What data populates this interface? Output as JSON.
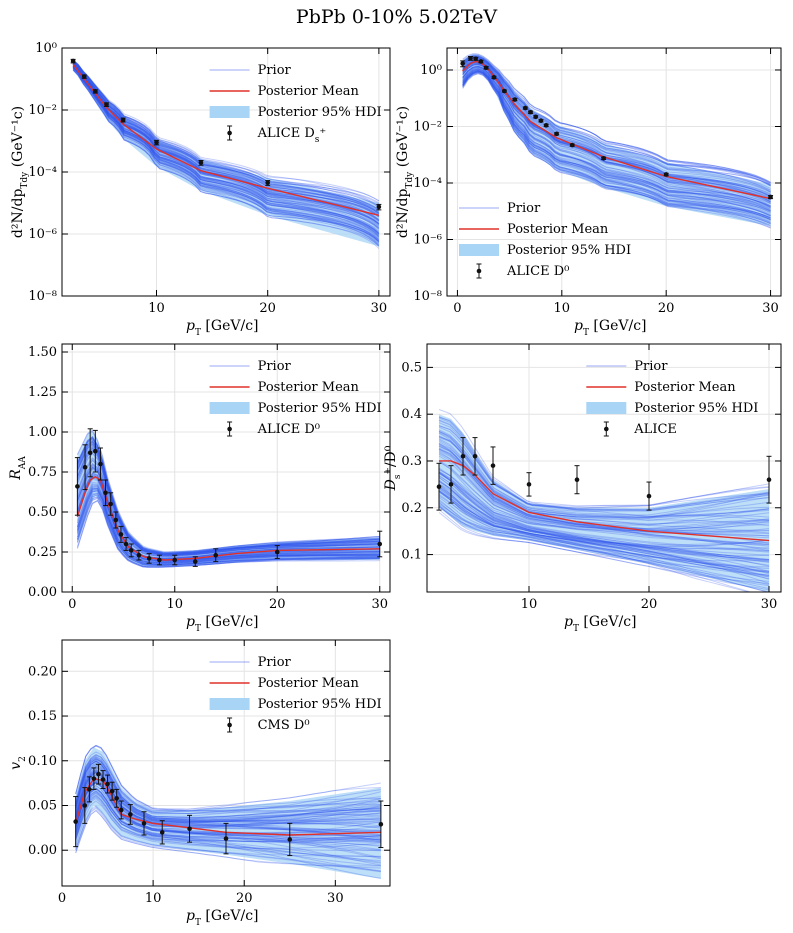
{
  "figure": {
    "title": "PbPb  0-10%  5.02TeV"
  },
  "colors": {
    "prior": "#3355ee",
    "posterior_mean": "#e0302a",
    "hdi": "#a8d4f5",
    "data": "#111111",
    "grid": "#e4e4e4"
  },
  "chart_data": [
    {
      "id": "ds-spectrum",
      "type": "line",
      "yscale": "log",
      "xlabel": "p_T [GeV/c]",
      "ylabel": "d²N/dp_Tdy (GeV⁻¹c)",
      "xlim": [
        1.5,
        31
      ],
      "ylim": [
        1e-08,
        1
      ],
      "xticks": [
        10,
        20,
        30
      ],
      "xtick_labels": [
        "10",
        "20",
        "30"
      ],
      "yticks": [
        1e-08,
        1e-06,
        0.0001,
        0.01,
        1
      ],
      "ytick_labels": [
        "10⁻⁸",
        "10⁻⁶",
        "10⁻⁴",
        "10⁻²",
        "10⁰"
      ],
      "legend": {
        "position": "top-right",
        "entries": [
          "Prior",
          "Posterior Mean",
          "Posterior 95% HDI",
          "ALICE D_s⁺"
        ]
      },
      "mean": {
        "x": [
          2.5,
          3.5,
          4.5,
          5.5,
          7,
          10,
          14,
          20,
          30
        ],
        "y": [
          0.3,
          0.1,
          0.035,
          0.012,
          0.0035,
          0.00055,
          0.00011,
          3e-05,
          4e-06
        ]
      },
      "hdi": {
        "x": [
          2.5,
          3.5,
          4.5,
          5.5,
          7,
          10,
          14,
          20,
          30
        ],
        "lo": [
          0.2,
          0.06,
          0.018,
          0.005,
          0.0012,
          0.00015,
          2.5e-05,
          4e-06,
          4e-07
        ],
        "hi": [
          0.42,
          0.16,
          0.06,
          0.022,
          0.007,
          0.0012,
          0.00026,
          6.5e-05,
          1e-05
        ]
      },
      "data": {
        "x": [
          2.5,
          3.5,
          4.5,
          5.5,
          7,
          10,
          14,
          20,
          30
        ],
        "y": [
          0.38,
          0.12,
          0.04,
          0.015,
          0.0048,
          0.0009,
          0.0002,
          4.5e-05,
          7.5e-06
        ],
        "err": [
          0.05,
          0.015,
          0.005,
          0.002,
          0.0007,
          0.00015,
          3.5e-05,
          8e-06,
          1.5e-06
        ]
      }
    },
    {
      "id": "d0-spectrum",
      "type": "line",
      "yscale": "log",
      "xlabel": "p_T [GeV/c]",
      "ylabel": "d²N/dp_Tdy (GeV⁻¹c)",
      "xlim": [
        -1,
        31
      ],
      "ylim": [
        1e-08,
        6
      ],
      "xticks": [
        0,
        10,
        20,
        30
      ],
      "xtick_labels": [
        "0",
        "10",
        "20",
        "30"
      ],
      "yticks": [
        1e-08,
        1e-06,
        0.0001,
        0.01,
        1
      ],
      "ytick_labels": [
        "10⁻⁸",
        "10⁻⁶",
        "10⁻⁴",
        "10⁻²",
        "10⁰"
      ],
      "legend": {
        "position": "bottom-left",
        "entries": [
          "Prior",
          "Posterior Mean",
          "Posterior 95% HDI",
          "ALICE D⁰"
        ]
      },
      "mean": {
        "x": [
          0.5,
          1.25,
          1.75,
          2.25,
          2.75,
          3.5,
          4.5,
          5.5,
          7,
          9.5,
          14,
          20,
          30
        ],
        "y": [
          0.9,
          1.7,
          2.0,
          1.8,
          1.3,
          0.6,
          0.18,
          0.06,
          0.015,
          0.004,
          0.00085,
          0.00017,
          2.8e-05
        ]
      },
      "hdi": {
        "x": [
          0.5,
          1.25,
          1.75,
          2.25,
          2.75,
          3.5,
          4.5,
          5.5,
          7,
          9.5,
          14,
          20,
          30
        ],
        "lo": [
          0.25,
          0.6,
          0.8,
          0.8,
          0.55,
          0.2,
          0.03,
          0.006,
          0.0012,
          0.0003,
          7e-05,
          1.5e-05,
          3e-06
        ],
        "hi": [
          2.2,
          3.4,
          3.6,
          3.2,
          2.4,
          1.3,
          0.5,
          0.17,
          0.045,
          0.012,
          0.0026,
          0.00055,
          9e-05
        ]
      },
      "data": {
        "x": [
          0.5,
          1.25,
          1.75,
          2.25,
          2.75,
          3.5,
          4.5,
          5.5,
          6.5,
          7,
          7.5,
          8,
          8.5,
          9.5,
          11,
          14,
          20,
          30
        ],
        "y": [
          1.7,
          2.6,
          2.5,
          2.0,
          1.2,
          0.55,
          0.18,
          0.09,
          0.045,
          0.032,
          0.022,
          0.016,
          0.011,
          0.0055,
          0.0022,
          0.00075,
          0.0002,
          3.2e-05
        ],
        "err": [
          0.4,
          0.4,
          0.3,
          0.2,
          0.12,
          0.05,
          0.015,
          0.008,
          0.004,
          0.003,
          0.002,
          0.0015,
          0.001,
          0.0005,
          0.0002,
          7e-05,
          2e-05,
          4e-06
        ]
      }
    },
    {
      "id": "d0-raa",
      "type": "line",
      "yscale": "linear",
      "xlabel": "p_T [GeV/c]",
      "ylabel": "R_AA",
      "xlim": [
        -1,
        31
      ],
      "ylim": [
        0,
        1.55
      ],
      "xticks": [
        0,
        10,
        20,
        30
      ],
      "xtick_labels": [
        "0",
        "10",
        "20",
        "30"
      ],
      "yticks": [
        0,
        0.25,
        0.5,
        0.75,
        1.0,
        1.25,
        1.5
      ],
      "ytick_labels": [
        "0.00",
        "0.25",
        "0.50",
        "0.75",
        "1.00",
        "1.25",
        "1.50"
      ],
      "legend": {
        "position": "top-right",
        "entries": [
          "Prior",
          "Posterior Mean",
          "Posterior 95% HDI",
          "ALICE D⁰"
        ]
      },
      "mean": {
        "x": [
          0.5,
          1.25,
          1.75,
          2.25,
          2.75,
          3.5,
          4.5,
          5.5,
          7,
          9,
          12,
          16,
          20,
          30
        ],
        "y": [
          0.47,
          0.62,
          0.7,
          0.72,
          0.7,
          0.55,
          0.38,
          0.28,
          0.22,
          0.2,
          0.21,
          0.24,
          0.26,
          0.27
        ]
      },
      "hdi": {
        "x": [
          0.5,
          1.25,
          1.75,
          2.25,
          2.75,
          3.5,
          4.5,
          5.5,
          7,
          9,
          12,
          16,
          20,
          30
        ],
        "lo": [
          0.3,
          0.45,
          0.55,
          0.6,
          0.57,
          0.42,
          0.27,
          0.2,
          0.16,
          0.16,
          0.17,
          0.19,
          0.2,
          0.2
        ],
        "hi": [
          0.85,
          0.95,
          1.02,
          0.98,
          0.9,
          0.7,
          0.5,
          0.37,
          0.28,
          0.25,
          0.26,
          0.29,
          0.31,
          0.34
        ]
      },
      "data": {
        "x": [
          0.5,
          1.25,
          1.75,
          2.25,
          2.75,
          3.25,
          3.75,
          4.25,
          4.75,
          5.25,
          5.75,
          6.5,
          7.5,
          8.5,
          10,
          12,
          14,
          20,
          30
        ],
        "y": [
          0.66,
          0.78,
          0.87,
          0.88,
          0.8,
          0.62,
          0.55,
          0.45,
          0.36,
          0.3,
          0.26,
          0.23,
          0.21,
          0.2,
          0.2,
          0.19,
          0.23,
          0.25,
          0.3
        ],
        "err": [
          0.18,
          0.14,
          0.15,
          0.13,
          0.1,
          0.08,
          0.07,
          0.05,
          0.05,
          0.04,
          0.04,
          0.03,
          0.03,
          0.03,
          0.03,
          0.03,
          0.04,
          0.04,
          0.08
        ]
      }
    },
    {
      "id": "ds-d0-ratio",
      "type": "line",
      "yscale": "linear",
      "xlabel": "p_T [GeV/c]",
      "ylabel": "D_s⁺/D⁰",
      "xlim": [
        1.5,
        31
      ],
      "ylim": [
        0.02,
        0.55
      ],
      "xticks": [
        10,
        20,
        30
      ],
      "xtick_labels": [
        "10",
        "20",
        "30"
      ],
      "yticks": [
        0.1,
        0.2,
        0.3,
        0.4,
        0.5
      ],
      "ytick_labels": [
        "0.1",
        "0.2",
        "0.3",
        "0.4",
        "0.5"
      ],
      "legend": {
        "position": "top-right",
        "entries": [
          "Prior",
          "Posterior Mean",
          "Posterior 95% HDI",
          "ALICE"
        ]
      },
      "mean": {
        "x": [
          2.5,
          3.5,
          4.5,
          5.5,
          7,
          10,
          14,
          20,
          30
        ],
        "y": [
          0.3,
          0.3,
          0.29,
          0.27,
          0.23,
          0.19,
          0.17,
          0.15,
          0.13
        ]
      },
      "hdi": {
        "x": [
          2.5,
          3.5,
          4.5,
          5.5,
          7,
          10,
          14,
          20,
          30
        ],
        "lo": [
          0.2,
          0.18,
          0.16,
          0.15,
          0.14,
          0.13,
          0.11,
          0.08,
          0.02
        ],
        "hi": [
          0.4,
          0.39,
          0.36,
          0.32,
          0.26,
          0.21,
          0.2,
          0.2,
          0.24
        ]
      },
      "data": {
        "x": [
          2.5,
          3.5,
          4.5,
          5.5,
          7,
          10,
          14,
          20,
          30
        ],
        "y": [
          0.245,
          0.25,
          0.31,
          0.31,
          0.29,
          0.25,
          0.26,
          0.225,
          0.26
        ],
        "err": [
          0.05,
          0.04,
          0.04,
          0.04,
          0.04,
          0.025,
          0.03,
          0.03,
          0.05
        ]
      }
    },
    {
      "id": "d0-v2",
      "type": "line",
      "yscale": "linear",
      "xlabel": "p_T [GeV/c]",
      "ylabel": "v_2",
      "xlim": [
        0,
        36
      ],
      "ylim": [
        -0.04,
        0.235
      ],
      "xticks": [
        0,
        10,
        20,
        30
      ],
      "xtick_labels": [
        "0",
        "10",
        "20",
        "30"
      ],
      "yticks": [
        0,
        0.05,
        0.1,
        0.15,
        0.2
      ],
      "ytick_labels": [
        "0.00",
        "0.05",
        "0.10",
        "0.15",
        "0.20"
      ],
      "legend": {
        "position": "top-right",
        "entries": [
          "Prior",
          "Posterior Mean",
          "Posterior 95% HDI",
          "CMS D⁰"
        ]
      },
      "mean": {
        "x": [
          1.5,
          2.5,
          3.5,
          4.5,
          5.5,
          6.5,
          8,
          10,
          14,
          18,
          25,
          35
        ],
        "y": [
          0.03,
          0.065,
          0.08,
          0.078,
          0.06,
          0.04,
          0.035,
          0.03,
          0.025,
          0.02,
          0.017,
          0.02
        ]
      },
      "hdi": {
        "x": [
          1.5,
          2.5,
          3.5,
          4.5,
          5.5,
          6.5,
          8,
          10,
          14,
          18,
          25,
          35
        ],
        "lo": [
          0.0,
          0.03,
          0.05,
          0.04,
          0.025,
          0.015,
          0.01,
          0.005,
          0.0,
          -0.005,
          -0.015,
          -0.032
        ],
        "hi": [
          0.06,
          0.1,
          0.115,
          0.11,
          0.09,
          0.07,
          0.055,
          0.045,
          0.045,
          0.048,
          0.055,
          0.07
        ]
      },
      "data": {
        "x": [
          1.5,
          2.5,
          3.0,
          3.5,
          4.0,
          4.5,
          5.0,
          5.5,
          6.0,
          6.5,
          7.5,
          9,
          11,
          14,
          18,
          25,
          35
        ],
        "y": [
          0.032,
          0.05,
          0.068,
          0.08,
          0.085,
          0.079,
          0.074,
          0.066,
          0.058,
          0.045,
          0.04,
          0.03,
          0.02,
          0.024,
          0.013,
          0.012,
          0.029
        ],
        "err": [
          0.028,
          0.02,
          0.014,
          0.012,
          0.011,
          0.01,
          0.01,
          0.01,
          0.01,
          0.01,
          0.011,
          0.013,
          0.013,
          0.015,
          0.017,
          0.018,
          0.026
        ]
      }
    }
  ]
}
